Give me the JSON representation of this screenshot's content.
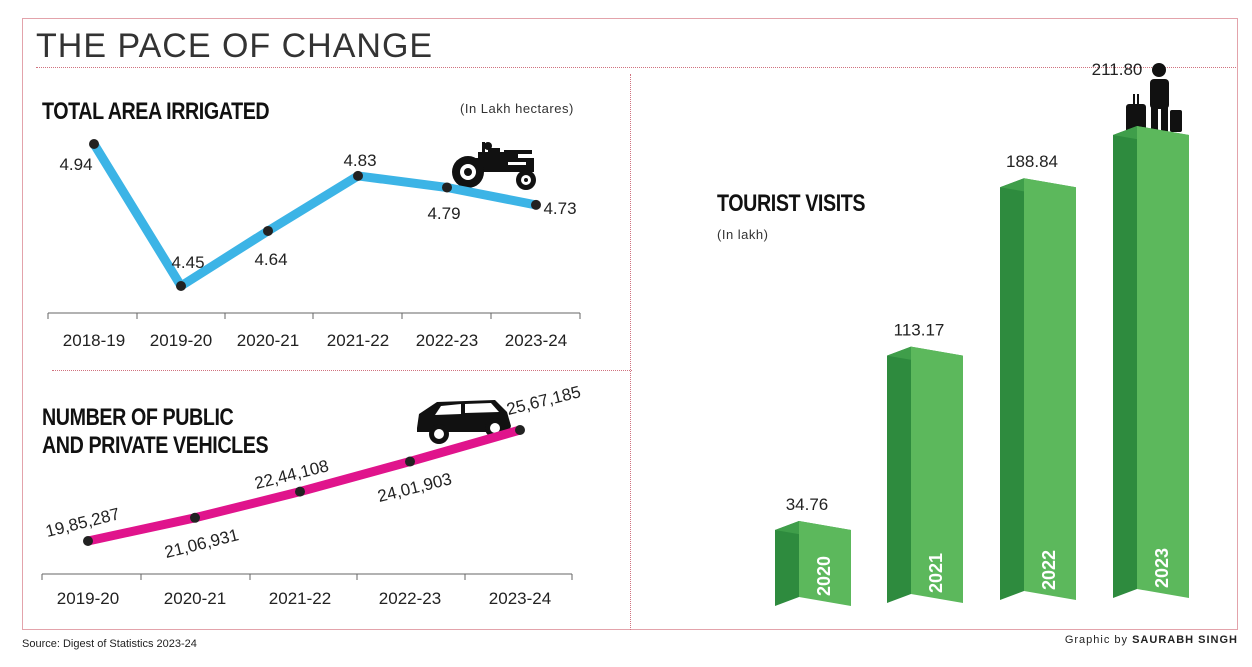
{
  "header": {
    "title": "THE PACE OF CHANGE"
  },
  "footer": {
    "source": "Source: Digest of Statistics 2023-24",
    "credit_prefix": "Graphic by",
    "credit_name": "SAURABH SINGH"
  },
  "colors": {
    "irrigation_line": "#3cb4e6",
    "vehicles_line": "#e0148c",
    "bar_front": "#5cb85c",
    "bar_side": "#2e8b3e",
    "bar_top": "#3f9e4a",
    "divider": "#d0727f"
  },
  "chart_data": [
    {
      "type": "line",
      "title": "TOTAL AREA IRRIGATED",
      "unit": "(In Lakh hectares)",
      "categories": [
        "2018-19",
        "2019-20",
        "2020-21",
        "2021-22",
        "2022-23",
        "2023-24"
      ],
      "values": [
        4.94,
        4.45,
        4.64,
        4.83,
        4.79,
        4.73
      ],
      "labels": [
        "4.94",
        "4.45",
        "4.64",
        "4.83",
        "4.79",
        "4.73"
      ],
      "icon": "tractor-icon"
    },
    {
      "type": "line",
      "title": "NUMBER OF PUBLIC AND PRIVATE VEHICLES",
      "title_lines": [
        "NUMBER OF PUBLIC",
        "AND PRIVATE VEHICLES"
      ],
      "categories": [
        "2019-20",
        "2020-21",
        "2021-22",
        "2022-23",
        "2023-24"
      ],
      "values": [
        1985287,
        2106931,
        2244108,
        2401903,
        2567185
      ],
      "labels": [
        "19,85,287",
        "21,06,931",
        "22,44,108",
        "24,01,903",
        "25,67,185"
      ],
      "icon": "car-icon"
    },
    {
      "type": "bar",
      "title": "TOURIST VISITS",
      "unit": "(In lakh)",
      "categories": [
        "2020",
        "2021",
        "2022",
        "2023"
      ],
      "values": [
        34.76,
        113.17,
        188.84,
        211.8
      ],
      "labels": [
        "34.76",
        "113.17",
        "188.84",
        "211.80"
      ],
      "icon": "tourist-luggage-icon"
    }
  ]
}
